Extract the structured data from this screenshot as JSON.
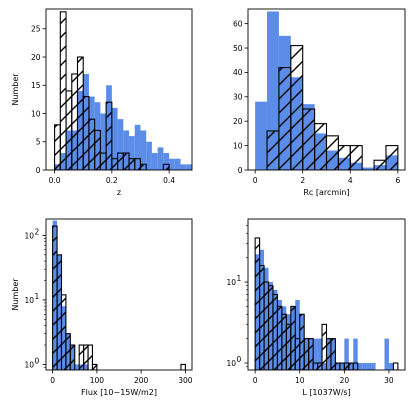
{
  "colors": {
    "filled": "#5b8de8",
    "outline": "#000000",
    "background": "#ffffff"
  },
  "chart_data": [
    {
      "type": "bar",
      "panel": "top-left",
      "xlabel": "z",
      "ylabel": "Number",
      "xlim": [
        -0.03,
        0.48
      ],
      "ylim": [
        0,
        28.5
      ],
      "yscale": "linear",
      "xticks": [
        0.0,
        0.2,
        0.4
      ],
      "xtick_labels": [
        "0.0",
        "0.2",
        "0.4"
      ],
      "yticks": [
        0,
        5,
        10,
        15,
        20,
        25
      ],
      "ytick_labels": [
        "0",
        "5",
        "10",
        "15",
        "20",
        "25"
      ],
      "grid": false,
      "series": [
        {
          "style": "filled",
          "bin_edges": [
            0.0,
            0.02,
            0.04,
            0.06,
            0.08,
            0.1,
            0.12,
            0.14,
            0.16,
            0.18,
            0.2,
            0.22,
            0.24,
            0.26,
            0.28,
            0.3,
            0.32,
            0.34,
            0.36,
            0.38,
            0.4,
            0.42,
            0.44,
            0.46,
            0.48
          ],
          "counts": [
            1,
            3,
            7,
            7,
            14,
            17,
            13,
            12,
            10,
            15,
            11,
            9,
            7,
            6,
            8,
            7,
            5,
            3,
            4,
            3,
            2,
            2,
            1,
            1
          ]
        },
        {
          "style": "hatched-outline",
          "bin_edges": [
            0.0,
            0.02,
            0.04,
            0.06,
            0.08,
            0.1,
            0.12,
            0.14,
            0.16,
            0.18,
            0.2,
            0.22,
            0.24,
            0.26,
            0.28,
            0.3,
            0.32,
            0.34,
            0.36,
            0.38,
            0.4
          ],
          "counts": [
            8,
            28,
            14,
            17,
            20,
            13,
            9,
            7,
            3,
            12,
            2,
            3,
            3,
            2,
            2,
            1,
            0,
            0,
            0,
            1
          ]
        }
      ]
    },
    {
      "type": "bar",
      "panel": "top-right",
      "xlabel": "R$_c$ [arcmin]",
      "xlabel_display": "Rc [arcmin]",
      "ylabel": "",
      "xlim": [
        -0.3,
        6.3
      ],
      "ylim": [
        0,
        66
      ],
      "yscale": "linear",
      "xticks": [
        0,
        2,
        4,
        6
      ],
      "xtick_labels": [
        "0",
        "2",
        "4",
        "6"
      ],
      "yticks": [
        0,
        10,
        20,
        30,
        40,
        50,
        60
      ],
      "ytick_labels": [
        "0",
        "10",
        "20",
        "30",
        "40",
        "50",
        "60"
      ],
      "grid": false,
      "series": [
        {
          "style": "filled",
          "bin_edges": [
            0.0,
            0.5,
            1.0,
            1.5,
            2.0,
            2.5,
            3.0,
            3.5,
            4.0,
            4.5,
            5.0,
            5.5,
            6.0
          ],
          "counts": [
            28,
            65,
            55,
            38,
            27,
            15,
            8,
            5,
            3,
            1,
            2,
            6
          ]
        },
        {
          "style": "hatched-outline",
          "bin_edges": [
            0.0,
            0.5,
            1.0,
            1.5,
            2.0,
            2.5,
            3.0,
            3.5,
            4.0,
            4.5,
            5.0,
            5.5,
            6.0
          ],
          "counts": [
            0,
            16,
            42,
            51,
            25,
            19,
            14,
            10,
            10,
            0,
            4,
            10
          ]
        }
      ]
    },
    {
      "type": "bar",
      "panel": "bottom-left",
      "xlabel": "Flux [10$^{-15}$W/m$^2$]",
      "xlabel_display": "Flux [10−15W/m2]",
      "ylabel": "Number",
      "xlim": [
        -15,
        315
      ],
      "ylim": [
        0.82,
        180
      ],
      "yscale": "log",
      "xticks": [
        0,
        100,
        200,
        300
      ],
      "xtick_labels": [
        "0",
        "100",
        "200",
        "300"
      ],
      "yticks": [
        1,
        10,
        100
      ],
      "ytick_labels": [
        "10^0",
        "10^1",
        "10^2"
      ],
      "grid": false,
      "series": [
        {
          "style": "filled",
          "bin_edges": [
            0,
            10,
            20,
            30,
            40,
            50,
            60,
            70,
            80
          ],
          "counts": [
            170,
            50,
            8,
            3,
            2,
            1,
            1,
            1
          ]
        },
        {
          "style": "hatched-outline",
          "bin_edges": [
            0,
            10,
            20,
            30,
            40,
            50,
            60,
            70,
            80,
            90,
            100,
            290,
            300
          ],
          "counts": [
            140,
            50,
            12,
            3,
            2,
            0,
            2,
            2,
            2,
            1,
            0,
            1
          ]
        }
      ]
    },
    {
      "type": "bar",
      "panel": "bottom-right",
      "xlabel": "L [10$^{37}$W/s]",
      "xlabel_display": "L [1037W/s]",
      "ylabel": "",
      "xlim": [
        -1.6,
        33.6
      ],
      "ylim": [
        0.82,
        60
      ],
      "yscale": "log",
      "xticks": [
        0,
        10,
        20,
        30
      ],
      "xtick_labels": [
        "0",
        "10",
        "20",
        "30"
      ],
      "yticks": [
        1,
        10
      ],
      "ytick_labels": [
        "10^0",
        "10^1"
      ],
      "grid": false,
      "series": [
        {
          "style": "filled",
          "bin_edges": [
            0,
            1,
            2,
            3,
            4,
            5,
            6,
            7,
            8,
            9,
            10,
            11,
            12,
            13,
            14,
            15,
            16,
            17,
            18,
            19,
            20,
            21,
            22,
            23,
            24,
            25,
            26,
            27,
            28,
            29,
            30,
            31
          ],
          "counts": [
            22,
            25,
            15,
            10,
            8,
            6,
            5,
            4,
            5,
            6,
            4,
            2,
            2,
            2,
            2,
            1,
            2,
            2,
            1,
            1,
            2,
            1,
            2,
            1,
            1,
            1,
            1,
            0,
            0,
            2,
            1
          ]
        },
        {
          "style": "hatched-outline",
          "bin_edges": [
            0,
            1,
            2,
            3,
            4,
            5,
            6,
            7,
            8,
            9,
            10,
            11,
            12,
            13,
            14,
            15,
            16,
            17,
            18,
            19,
            20,
            21,
            22,
            23,
            24,
            25,
            26,
            27,
            28,
            29,
            30,
            31,
            32
          ],
          "counts": [
            35,
            16,
            10,
            9,
            7,
            5,
            4,
            3,
            5,
            2,
            4,
            2,
            2,
            1,
            1,
            3,
            2,
            2,
            1,
            1,
            1,
            1,
            1,
            0,
            0,
            0,
            0,
            0,
            0,
            0,
            0,
            1
          ]
        }
      ]
    }
  ]
}
